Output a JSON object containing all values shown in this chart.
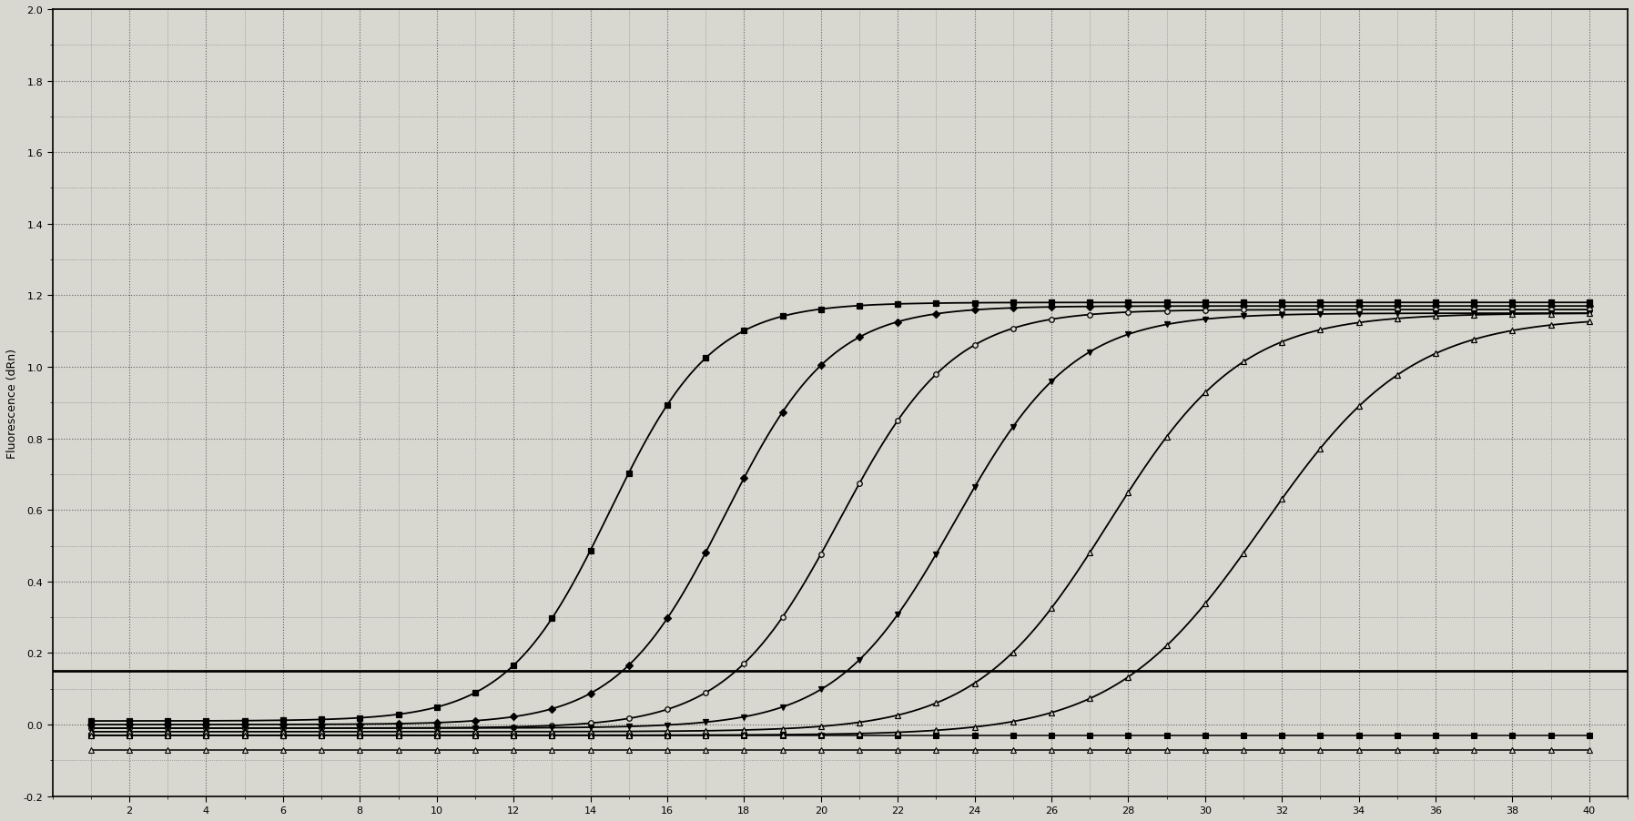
{
  "title": "",
  "ylabel": "Fluorescence (dRn)",
  "xlabel": "",
  "xlim": [
    0,
    41
  ],
  "ylim": [
    -0.2,
    2.0
  ],
  "xticks": [
    2,
    4,
    6,
    8,
    10,
    12,
    14,
    16,
    18,
    20,
    22,
    24,
    26,
    28,
    30,
    32,
    34,
    36,
    38,
    40
  ],
  "yticks": [
    -0.2,
    0.0,
    0.2,
    0.4,
    0.6,
    0.8,
    1.0,
    1.2,
    1.4,
    1.6,
    1.8,
    2.0
  ],
  "threshold": 0.15,
  "background_color": "#d8d8d0",
  "grid_color": "#555555",
  "line_color": "#000000",
  "curves": [
    {
      "ct": 14.5,
      "marker": "s",
      "plateau": 1.18,
      "slope": 0.75,
      "baseline": 0.01,
      "msize": 5,
      "filled": true,
      "marker_every": 2
    },
    {
      "ct": 17.5,
      "marker": "D",
      "plateau": 1.17,
      "slope": 0.72,
      "baseline": 0.0,
      "msize": 4,
      "filled": true,
      "marker_every": 2
    },
    {
      "ct": 20.5,
      "marker": "o",
      "plateau": 1.16,
      "slope": 0.68,
      "baseline": -0.01,
      "msize": 4,
      "filled": false,
      "marker_every": 2
    },
    {
      "ct": 23.5,
      "marker": "v",
      "plateau": 1.15,
      "slope": 0.65,
      "baseline": -0.01,
      "msize": 5,
      "filled": true,
      "marker_every": 2
    },
    {
      "ct": 27.5,
      "marker": "^",
      "plateau": 1.15,
      "slope": 0.58,
      "baseline": -0.02,
      "msize": 5,
      "filled": false,
      "marker_every": 2
    },
    {
      "ct": 31.5,
      "marker": "^",
      "plateau": 1.14,
      "slope": 0.52,
      "baseline": -0.03,
      "msize": 5,
      "filled": false,
      "marker_every": 2
    }
  ],
  "flat_lines": [
    {
      "val": -0.03,
      "marker": "s",
      "filled": true,
      "msize": 4
    },
    {
      "val": -0.07,
      "marker": "^",
      "filled": false,
      "msize": 4
    }
  ]
}
